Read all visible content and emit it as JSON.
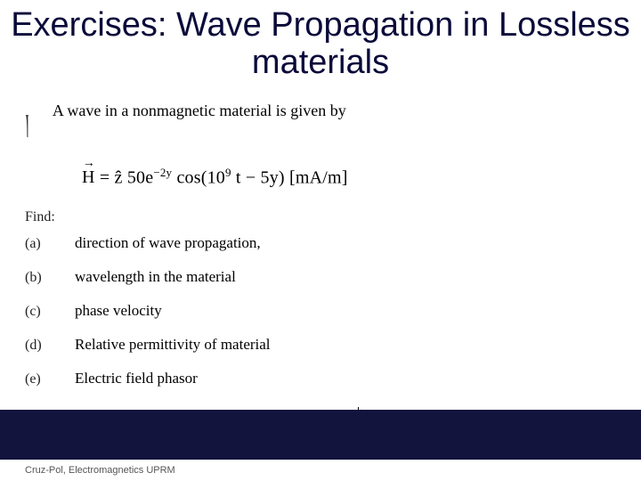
{
  "title": {
    "text": "Exercises: Wave Propagation in Lossless materials",
    "fontsize": 38,
    "color": "#0a0a3a"
  },
  "intro": {
    "bullet": "།",
    "text": "A wave in a nonmagnetic material is given by",
    "fontsize": 18
  },
  "equation": {
    "prefix_html": "H̅ = ẑ 50 e",
    "exp1": "−2y",
    "mid": " cos(10",
    "exp2": "9",
    "suffix": " t − 5y) [mA/m]",
    "fontsize": 20
  },
  "find": {
    "label": "Find:",
    "fontsize": 16
  },
  "items": [
    {
      "label": "(a)",
      "text": "direction of wave propagation,"
    },
    {
      "label": "(b)",
      "text": "wavelength in the material"
    },
    {
      "label": "(c)",
      "text": "phase velocity"
    },
    {
      "label": "(d)",
      "text": "Relative permittivity of material"
    },
    {
      "label": "(e)",
      "text": "Electric field phasor"
    }
  ],
  "item_label_fontsize": 16,
  "item_text_fontsize": 17,
  "bottom_bar_color": "#12143e",
  "footer": {
    "text": "Cruz-Pol, Electromagnetics UPRM",
    "fontsize": 11,
    "color": "#555555"
  },
  "background_color": "#ffffff"
}
